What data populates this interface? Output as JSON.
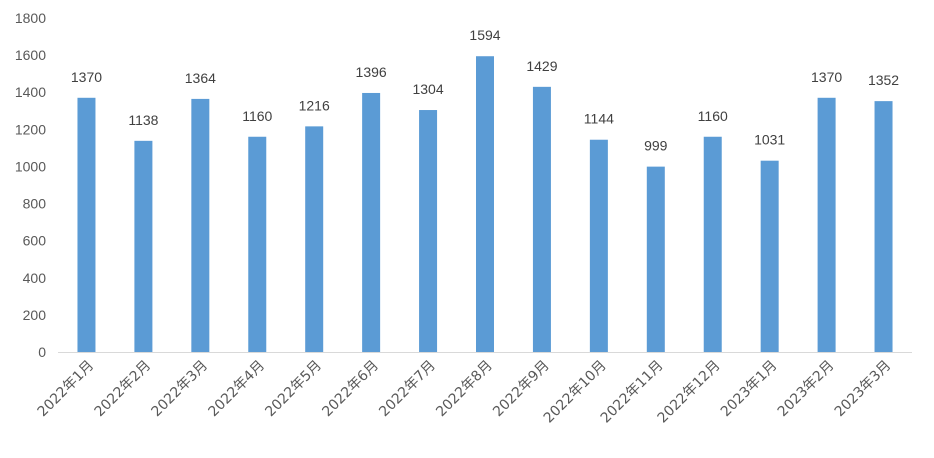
{
  "chart_data": {
    "type": "bar",
    "title": "",
    "xlabel": "",
    "ylabel": "",
    "categories": [
      "2022年1月",
      "2022年2月",
      "2022年3月",
      "2022年4月",
      "2022年5月",
      "2022年6月",
      "2022年7月",
      "2022年8月",
      "2022年9月",
      "2022年10月",
      "2022年11月",
      "2022年12月",
      "2023年1月",
      "2023年2月",
      "2023年3月"
    ],
    "values": [
      1370,
      1138,
      1364,
      1160,
      1216,
      1396,
      1304,
      1594,
      1429,
      1144,
      999,
      1160,
      1031,
      1370,
      1352
    ],
    "ylim": [
      0,
      1800
    ],
    "yticks": [
      0,
      200,
      400,
      600,
      800,
      1000,
      1200,
      1400,
      1600,
      1800
    ],
    "grid": false,
    "legend": "none",
    "data_labels": true,
    "bar_color": "#5B9BD5",
    "axis_color": "#D9D9D9"
  }
}
